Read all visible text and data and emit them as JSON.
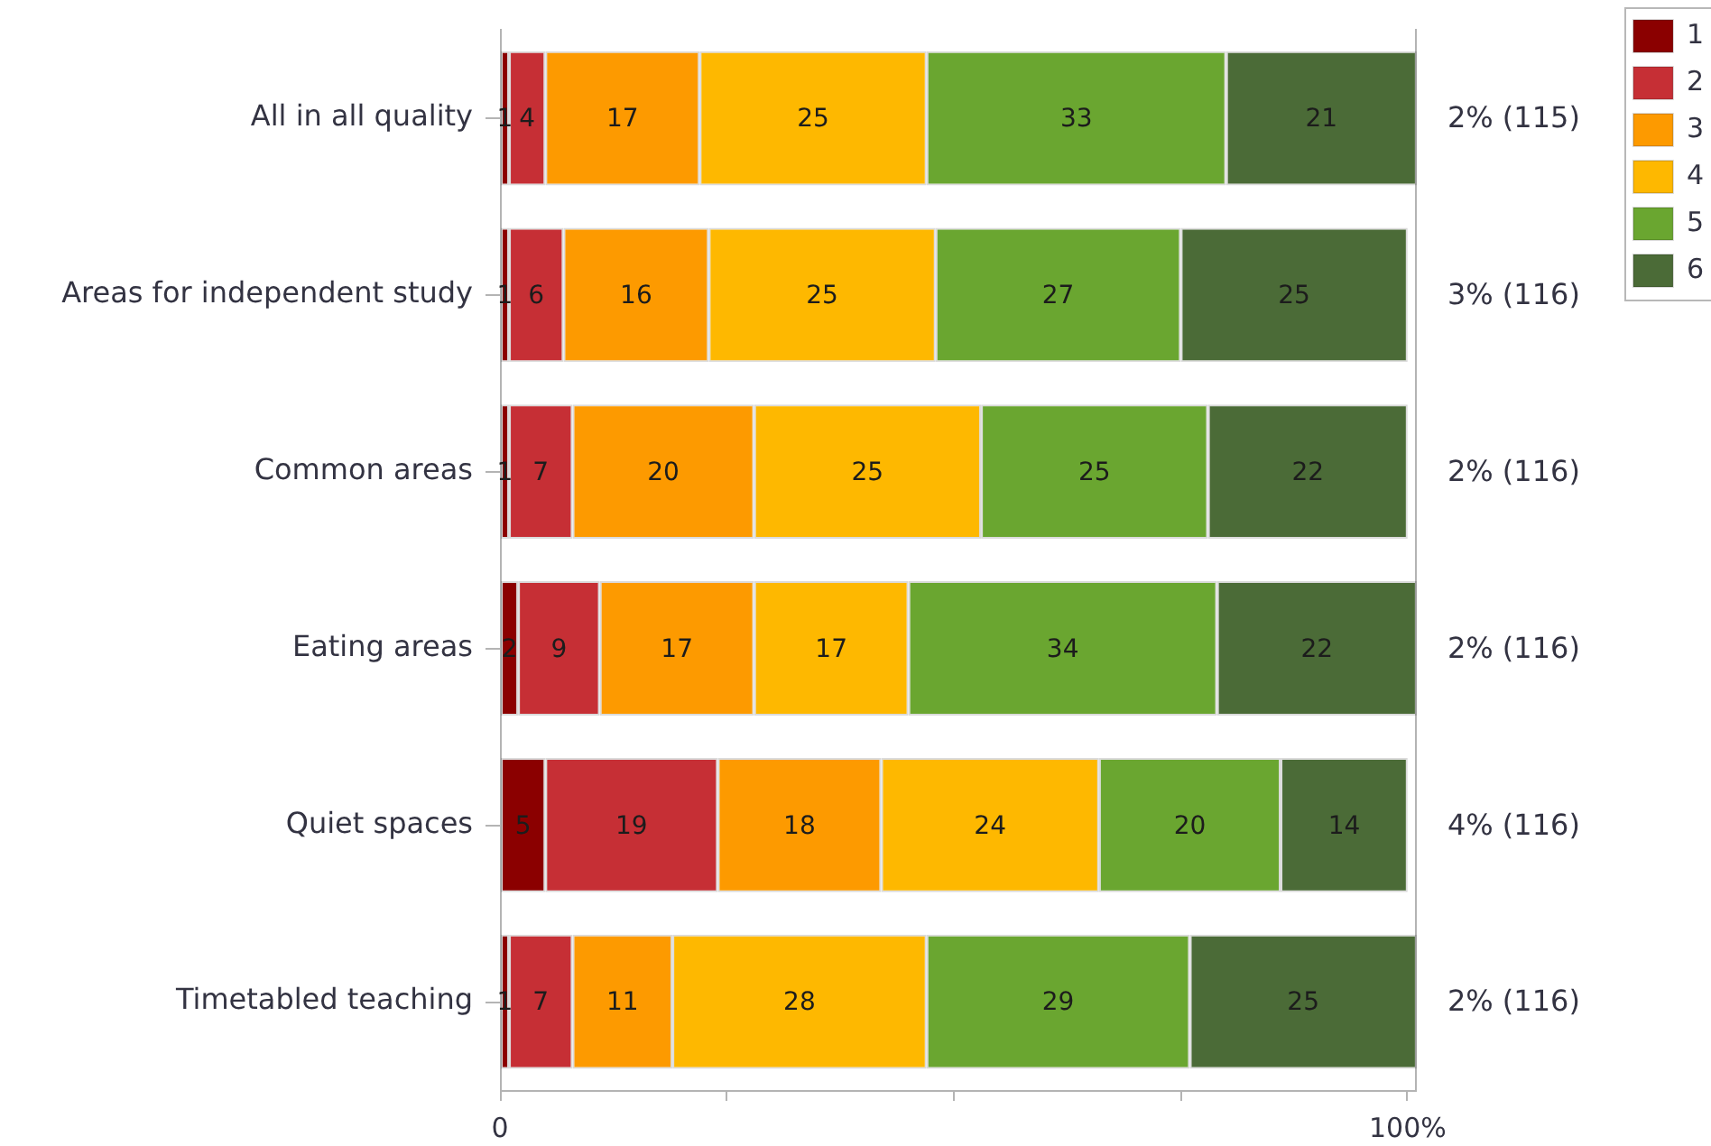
{
  "chart_data": {
    "type": "bar",
    "orientation": "horizontal",
    "stacked": true,
    "categories": [
      "All in all quality",
      "Areas for independent study",
      "Common areas",
      "Eating areas",
      "Quiet spaces",
      "Timetabled teaching"
    ],
    "series": [
      {
        "name": "1",
        "color": "#8b0000",
        "values": [
          1,
          1,
          1,
          2,
          5,
          1
        ]
      },
      {
        "name": "2",
        "color": "#c62f35",
        "values": [
          4,
          6,
          7,
          9,
          19,
          7
        ]
      },
      {
        "name": "3",
        "color": "#fd9a00",
        "values": [
          17,
          16,
          20,
          17,
          18,
          11
        ]
      },
      {
        "name": "4",
        "color": "#feb800",
        "values": [
          25,
          25,
          25,
          17,
          24,
          28
        ]
      },
      {
        "name": "5",
        "color": "#6aa630",
        "values": [
          33,
          27,
          25,
          34,
          20,
          29
        ]
      },
      {
        "name": "6",
        "color": "#4b6b37",
        "values": [
          21,
          25,
          22,
          22,
          14,
          25
        ]
      }
    ],
    "xlim": [
      0,
      101
    ],
    "xticks": [
      0,
      {
        "value": 25,
        "label": null
      },
      {
        "value": 50,
        "label": null
      },
      {
        "value": 75,
        "label": null
      },
      {
        "value": 100,
        "label": "100%"
      }
    ],
    "data_labels": true,
    "legend": "top right",
    "annotations": [
      "2% (115)",
      "3% (116)",
      "2% (116)",
      "2% (116)",
      "4% (116)",
      "2% (116)"
    ]
  }
}
